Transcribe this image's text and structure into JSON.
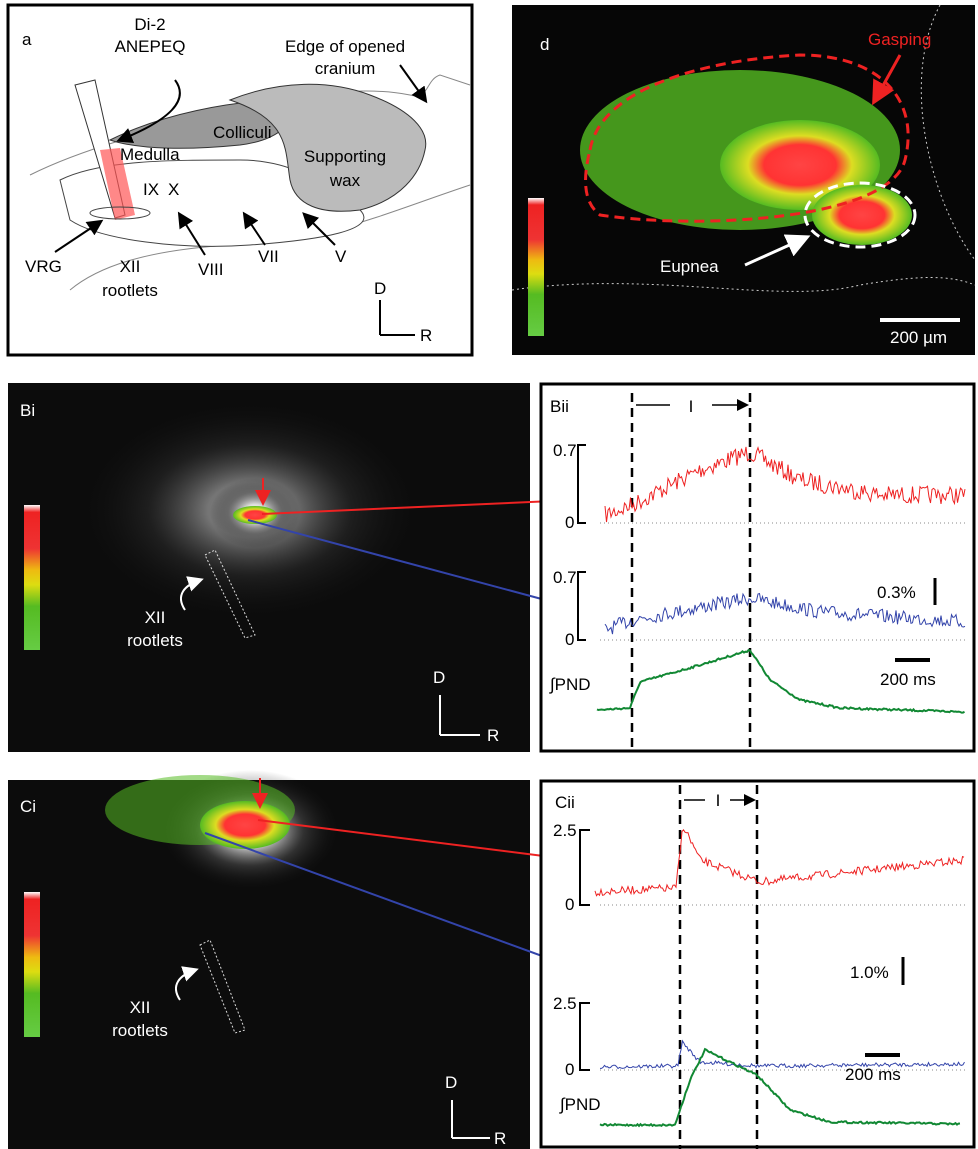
{
  "panels": {
    "a": {
      "label": "a",
      "pipette_label": [
        "Di-2",
        "ANEPEQ"
      ],
      "cranium_label": [
        "Edge of opened",
        "cranium"
      ],
      "colliculi": "Colliculi",
      "medulla": "Medulla",
      "wax": [
        "Supporting",
        "wax"
      ],
      "nerves": [
        "IX",
        "X",
        "VIII",
        "VII",
        "V"
      ],
      "vrg": "VRG",
      "rootlets": [
        "XII",
        "rootlets"
      ],
      "axes": [
        "D",
        "R"
      ]
    },
    "d": {
      "label": "d",
      "gasping": "Gasping",
      "eupnea": "Eupnea",
      "scale": "200 µm"
    },
    "Bi": {
      "label": "Bi",
      "rootlets": [
        "XII",
        "rootlets"
      ],
      "axes": [
        "D",
        "R"
      ]
    },
    "Bii": {
      "label": "Bii",
      "interval": "I",
      "scale_top": [
        "0.7",
        "0"
      ],
      "scale_bottom": [
        "0.7",
        "0"
      ],
      "amplitude": "0.3%",
      "time": "200 ms",
      "pnd": "∫PND"
    },
    "Ci": {
      "label": "Ci",
      "rootlets": [
        "XII",
        "rootlets"
      ],
      "axes": [
        "D",
        "R"
      ]
    },
    "Cii": {
      "label": "Cii",
      "interval": "I",
      "scale_top": [
        "2.5",
        "0"
      ],
      "scale_bottom": [
        "2.5",
        "0"
      ],
      "amplitude": "1.0%",
      "time": "200 ms",
      "pnd": "∫PND"
    }
  }
}
